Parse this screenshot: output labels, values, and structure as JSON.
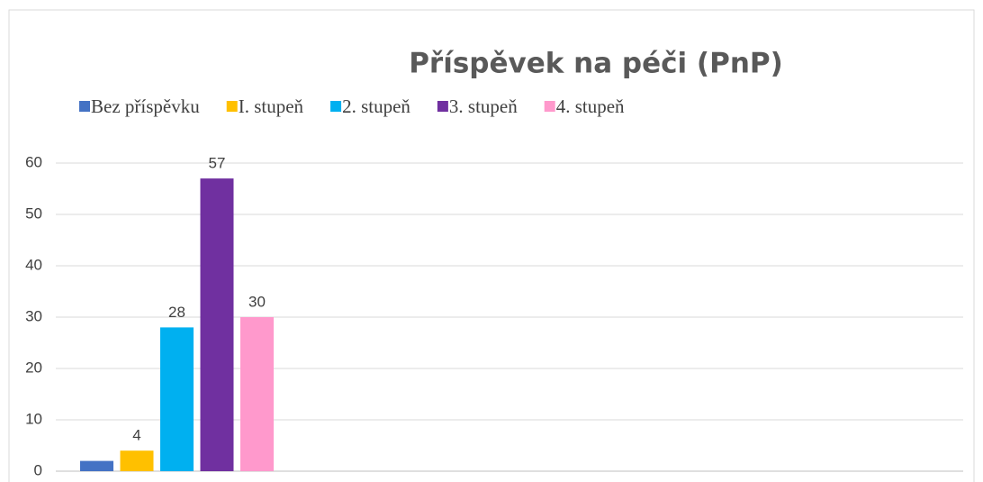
{
  "chart_data": {
    "type": "bar",
    "title": "Příspěvek na péči (PnP)",
    "categories": [
      null
    ],
    "series": [
      {
        "name": "Bez příspěvku",
        "color": "#4472c4",
        "values": [
          2
        ]
      },
      {
        "name": "I. stupeň",
        "color": "#ffc000",
        "values": [
          4
        ],
        "value_labels": [
          "4"
        ]
      },
      {
        "name": "2. stupeň",
        "color": "#00b0f0",
        "values": [
          28
        ],
        "value_labels": [
          "28"
        ]
      },
      {
        "name": "3. stupeň",
        "color": "#7030a0",
        "values": [
          57
        ],
        "value_labels": [
          "57"
        ]
      },
      {
        "name": "4. stupeň",
        "color": "#ff99cc",
        "values": [
          30
        ],
        "value_labels": [
          "30"
        ]
      }
    ],
    "ylim": [
      0,
      60
    ],
    "yticks": [
      0,
      10,
      20,
      30,
      40,
      50,
      60
    ],
    "grid": true,
    "legend": "top"
  }
}
